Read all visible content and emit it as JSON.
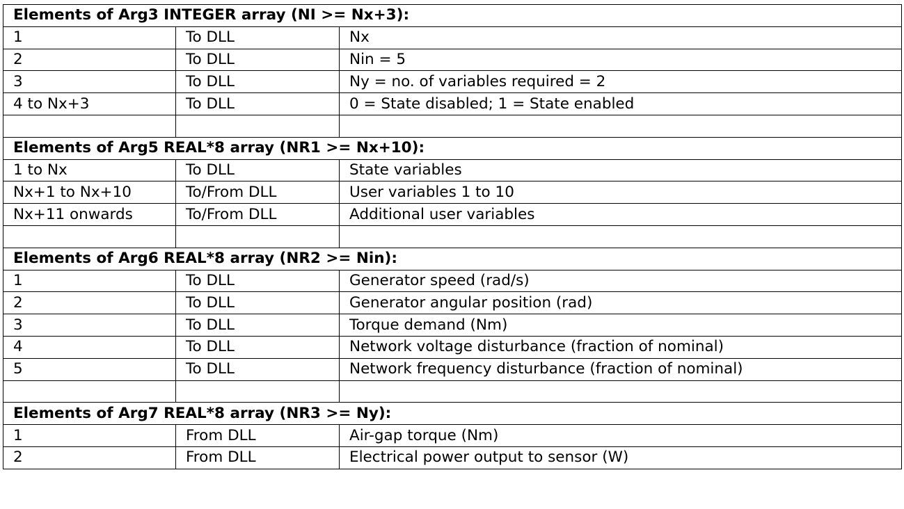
{
  "sections": [
    {
      "title": "Elements of Arg3 INTEGER array (NI >= Nx+3):",
      "rows": [
        [
          "1",
          "To DLL",
          "Nx"
        ],
        [
          "2",
          "To DLL",
          "Nin = 5"
        ],
        [
          "3",
          "To DLL",
          "Ny = no. of variables required = 2"
        ],
        [
          "4 to Nx+3",
          "To DLL",
          "0 = State disabled; 1 = State enabled"
        ],
        [
          "",
          "",
          ""
        ]
      ]
    },
    {
      "title": "Elements of Arg5 REAL*8 array (NR1 >= Nx+10):",
      "rows": [
        [
          "1 to Nx",
          "To DLL",
          "State variables"
        ],
        [
          "Nx+1 to Nx+10",
          "To/From DLL",
          "User variables 1 to 10"
        ],
        [
          "Nx+11 onwards",
          "To/From DLL",
          "Additional user variables"
        ],
        [
          "",
          "",
          ""
        ]
      ]
    },
    {
      "title": "Elements of Arg6 REAL*8 array (NR2 >= Nin):",
      "rows": [
        [
          "1",
          "To DLL",
          "Generator speed (rad/s)"
        ],
        [
          "2",
          "To DLL",
          "Generator angular position (rad)"
        ],
        [
          "3",
          "To DLL",
          "Torque demand (Nm)"
        ],
        [
          "4",
          "To DLL",
          "Network voltage disturbance (fraction of nominal)"
        ],
        [
          "5",
          "To DLL",
          "Network frequency disturbance (fraction of nominal)"
        ],
        [
          "",
          "",
          ""
        ]
      ]
    },
    {
      "title": "Elements of Arg7 REAL*8 array (NR3 >= Ny):",
      "rows": [
        [
          "1",
          "From DLL",
          "Air-gap torque (Nm)"
        ],
        [
          "2",
          "From DLL",
          "Electrical power output to sensor (W)"
        ]
      ]
    }
  ]
}
